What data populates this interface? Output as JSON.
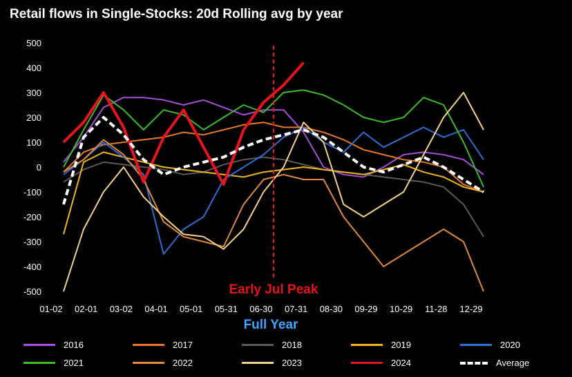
{
  "chart_data": {
    "type": "line",
    "title": "Retail flows in Single-Stocks: 20d Rolling avg by year",
    "xlabel": "Full Year",
    "ylabel": "",
    "x_ticks": [
      "01-02",
      "02-01",
      "03-02",
      "04-01",
      "05-01",
      "05-31",
      "06-30",
      "07-31",
      "08-30",
      "09-29",
      "10-29",
      "11-28",
      "12-29"
    ],
    "ylim": [
      -500,
      500
    ],
    "y_ticks": [
      500,
      400,
      300,
      200,
      100,
      0,
      -100,
      -200,
      -300,
      -400,
      -500
    ],
    "grid": false,
    "legend_position": "bottom",
    "annotation": {
      "text": "Early Jul Peak",
      "x": "07-04",
      "color": "#e8141c"
    },
    "series": [
      {
        "name": "2016",
        "color": "#a64fd6",
        "values": [
          20,
          120,
          240,
          280,
          280,
          270,
          250,
          270,
          240,
          210,
          230,
          230,
          140,
          0,
          -30,
          -40,
          0,
          50,
          60,
          50,
          30,
          -30
        ]
      },
      {
        "name": "2017",
        "color": "#e57a2c",
        "values": [
          -20,
          60,
          90,
          100,
          110,
          120,
          140,
          130,
          150,
          170,
          180,
          160,
          160,
          140,
          110,
          70,
          50,
          30,
          20,
          0,
          -70,
          -100
        ]
      },
      {
        "name": "2018",
        "color": "#5a5a5a",
        "values": [
          -60,
          -10,
          20,
          10,
          0,
          -10,
          -30,
          -20,
          10,
          30,
          40,
          30,
          10,
          -10,
          -20,
          -30,
          -40,
          -50,
          -60,
          -80,
          -150,
          -280
        ]
      },
      {
        "name": "2019",
        "color": "#f2b51b",
        "values": [
          -270,
          20,
          60,
          40,
          20,
          0,
          -10,
          -20,
          -30,
          -40,
          -20,
          -10,
          0,
          -10,
          -20,
          -30,
          -10,
          10,
          -20,
          -40,
          -80,
          -100
        ]
      },
      {
        "name": "2020",
        "color": "#2e6fd3",
        "values": [
          -30,
          30,
          100,
          40,
          -30,
          -350,
          -250,
          -200,
          -50,
          0,
          50,
          120,
          160,
          100,
          60,
          140,
          80,
          120,
          160,
          120,
          150,
          30
        ]
      },
      {
        "name": "2021",
        "color": "#3dbb2e",
        "values": [
          0,
          150,
          290,
          230,
          150,
          230,
          210,
          150,
          200,
          250,
          220,
          300,
          310,
          290,
          250,
          200,
          180,
          200,
          280,
          250,
          100,
          -80
        ]
      },
      {
        "name": "2022",
        "color": "#e08a3f",
        "values": [
          -20,
          30,
          110,
          50,
          -50,
          -220,
          -280,
          -300,
          -320,
          -150,
          -50,
          -30,
          -50,
          -50,
          -200,
          -300,
          -400,
          -350,
          -300,
          -250,
          -300,
          -500
        ]
      },
      {
        "name": "2023",
        "color": "#f7d287",
        "values": [
          -500,
          -250,
          -100,
          0,
          -120,
          -200,
          -270,
          -280,
          -330,
          -250,
          -100,
          0,
          180,
          100,
          -150,
          -200,
          -150,
          -100,
          50,
          200,
          300,
          150
        ]
      },
      {
        "name": "2024",
        "color": "#e8141c",
        "values": [
          100,
          180,
          300,
          160,
          -60,
          120,
          230,
          80,
          -70,
          150,
          260,
          330,
          420
        ]
      },
      {
        "name": "Average",
        "color": "#ffffff",
        "values": [
          -150,
          120,
          200,
          130,
          30,
          -30,
          0,
          20,
          40,
          80,
          110,
          130,
          150,
          120,
          60,
          0,
          -20,
          10,
          40,
          0,
          -50,
          -100
        ]
      }
    ]
  }
}
